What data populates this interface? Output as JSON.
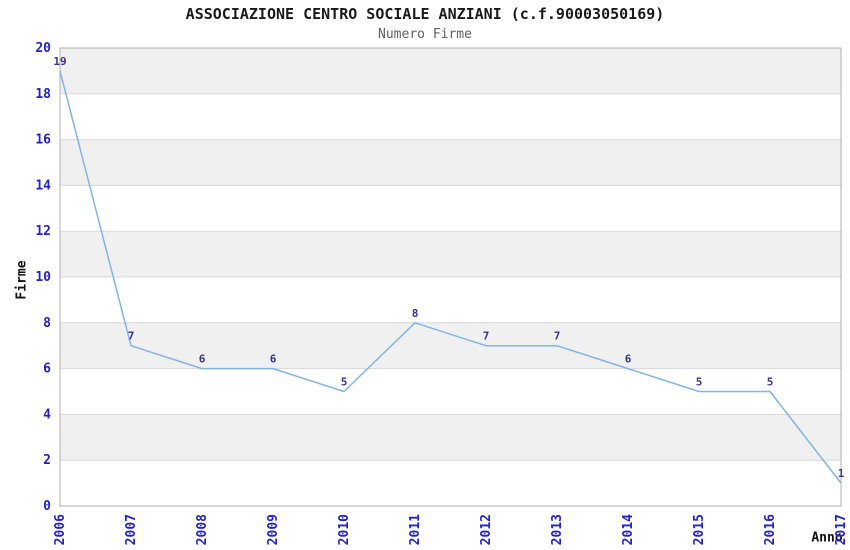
{
  "chart_data": {
    "type": "line",
    "title": "ASSOCIAZIONE CENTRO SOCIALE ANZIANI (c.f.90003050169)",
    "subtitle": "Numero Firme",
    "xlabel": "Anno",
    "ylabel": "Firme",
    "categories": [
      "2006",
      "2007",
      "2008",
      "2009",
      "2010",
      "2011",
      "2012",
      "2013",
      "2014",
      "2015",
      "2016",
      "2017"
    ],
    "values": [
      19,
      7,
      6,
      6,
      5,
      8,
      7,
      7,
      6,
      5,
      5,
      1
    ],
    "ylim": [
      0,
      20
    ],
    "ytick_step": 2,
    "grid": "horizontal",
    "banding": "alternating horizontal gray bands every 2 units (2-4, 6-8, 10-12, 14-16, 18-20)",
    "legend": "none",
    "point_labels_shown": true,
    "x_tick_rotation_deg": -90,
    "colors": {
      "line": "#82b4e6",
      "tick_label": "#2222cc",
      "point_label": "#333399",
      "band": "#f0f0f0",
      "grid": "#d8d8d8",
      "border": "#b0b0b0",
      "title": "#1a1a1a",
      "subtitle": "#606060",
      "background": "#ffffff"
    }
  }
}
